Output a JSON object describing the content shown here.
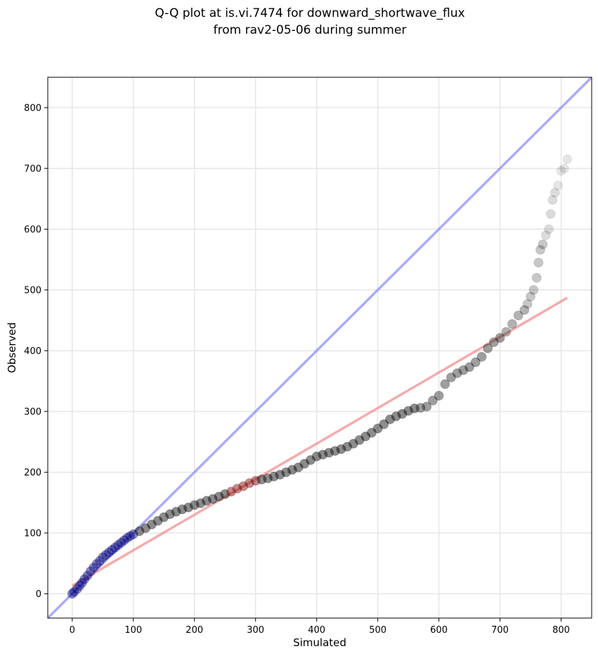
{
  "chart_data": {
    "type": "scatter",
    "title_line1": "Q-Q plot at is.vi.7474 for downward_shortwave_flux",
    "title_line2": "from rav2-05-06 during summer",
    "xlabel": "Simulated",
    "ylabel": "Observed",
    "xlim": [
      -40,
      850
    ],
    "ylim": [
      -40,
      850
    ],
    "xticks": [
      0,
      100,
      200,
      300,
      400,
      500,
      600,
      700,
      800
    ],
    "yticks": [
      0,
      100,
      200,
      300,
      400,
      500,
      600,
      700,
      800
    ],
    "grid": true,
    "colors": {
      "points": "#000000",
      "points_low_range": "#00007a",
      "points_mid_range": "#7a0000",
      "identity_line": "#6666ff",
      "fit_line": "#f08080",
      "grid": "#e6e6e6",
      "frame": "#000000"
    },
    "identity_line": {
      "x": [
        -40,
        850
      ],
      "y": [
        -40,
        850
      ]
    },
    "fit_line": {
      "x": [
        0,
        810
      ],
      "y": [
        13,
        487
      ]
    },
    "quantiles": {
      "x": [
        0,
        3,
        8,
        12,
        16,
        20,
        25,
        30,
        35,
        40,
        45,
        50,
        55,
        60,
        65,
        70,
        75,
        80,
        85,
        90,
        95,
        100,
        110,
        120,
        130,
        140,
        150,
        160,
        170,
        180,
        190,
        200,
        210,
        220,
        230,
        240,
        250,
        260,
        270,
        280,
        290,
        300,
        310,
        320,
        330,
        340,
        350,
        360,
        370,
        380,
        390,
        400,
        410,
        420,
        430,
        440,
        450,
        460,
        470,
        480,
        490,
        500,
        510,
        520,
        530,
        540,
        550,
        560,
        570,
        580,
        590,
        600,
        610,
        620,
        630,
        640,
        650,
        660,
        670,
        680,
        690,
        700,
        710,
        720,
        730,
        740,
        745,
        750,
        755,
        760,
        763,
        766,
        770,
        775,
        780,
        783,
        786,
        790,
        795,
        800,
        805,
        810
      ],
      "y": [
        0,
        3,
        8,
        13,
        18,
        24,
        30,
        37,
        43,
        49,
        54,
        60,
        64,
        68,
        72,
        76,
        80,
        84,
        88,
        92,
        95,
        98,
        103,
        108,
        114,
        120,
        126,
        131,
        135,
        139,
        142,
        146,
        149,
        153,
        156,
        160,
        164,
        168,
        173,
        177,
        182,
        186,
        188,
        190,
        193,
        196,
        200,
        204,
        208,
        214,
        220,
        226,
        229,
        232,
        235,
        238,
        242,
        247,
        253,
        259,
        265,
        272,
        279,
        287,
        292,
        296,
        301,
        305,
        306,
        308,
        318,
        326,
        345,
        356,
        363,
        368,
        373,
        381,
        390,
        404,
        414,
        421,
        431,
        444,
        458,
        467,
        477,
        489,
        500,
        520,
        545,
        566,
        575,
        590,
        600,
        625,
        648,
        660,
        672,
        696,
        700,
        715
      ]
    }
  }
}
